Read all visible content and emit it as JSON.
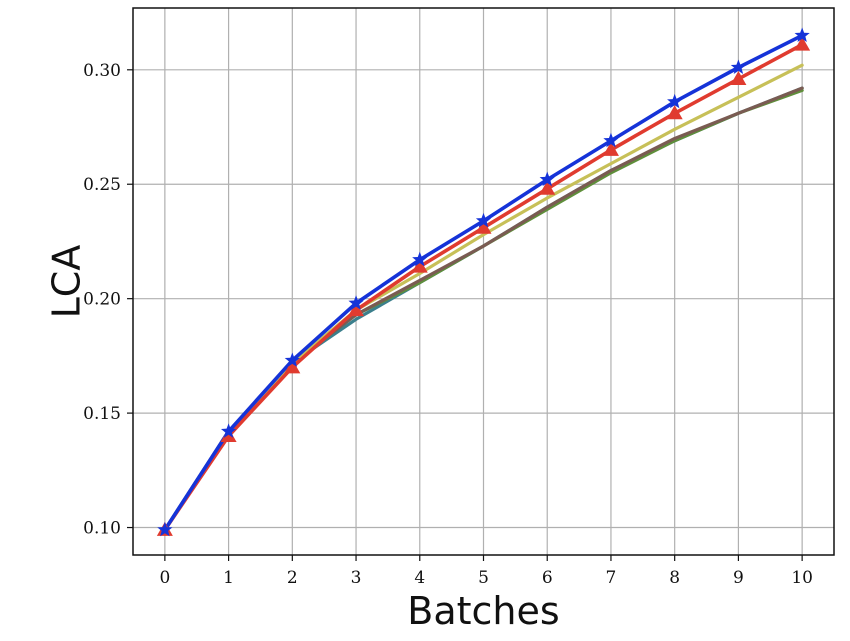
{
  "chart_data": {
    "type": "line",
    "title": "",
    "xlabel": "Batches",
    "ylabel": "LCA",
    "x": [
      0,
      1,
      2,
      3,
      4,
      5,
      6,
      7,
      8,
      9,
      10
    ],
    "xlim": [
      -0.5,
      10.5
    ],
    "ylim": [
      0.088,
      0.327
    ],
    "xticks": [
      "0",
      "1",
      "2",
      "3",
      "4",
      "5",
      "6",
      "7",
      "8",
      "9",
      "10"
    ],
    "yticks": [
      "0.10",
      "0.15",
      "0.20",
      "0.25",
      "0.30"
    ],
    "grid": true,
    "legend": "none",
    "series": [
      {
        "color": "#3b7f8c",
        "marker": "none",
        "values": [
          0.099,
          0.142,
          0.172,
          0.191,
          0.207,
          0.223,
          0.24,
          0.256,
          0.269,
          0.281,
          0.292
        ]
      },
      {
        "color": "#5f8f3b",
        "marker": "none",
        "values": [
          0.099,
          0.142,
          0.172,
          0.193,
          0.207,
          0.223,
          0.239,
          0.255,
          0.269,
          0.281,
          0.291
        ]
      },
      {
        "color": "#7a5b52",
        "marker": "none",
        "values": [
          0.099,
          0.142,
          0.172,
          0.193,
          0.208,
          0.223,
          0.24,
          0.256,
          0.27,
          0.281,
          0.292
        ]
      },
      {
        "color": "#c7c058",
        "marker": "none",
        "values": [
          0.099,
          0.142,
          0.172,
          0.195,
          0.211,
          0.228,
          0.244,
          0.259,
          0.274,
          0.288,
          0.302
        ]
      },
      {
        "color": "#e03b2f",
        "marker": "triangle",
        "values": [
          0.099,
          0.14,
          0.17,
          0.195,
          0.214,
          0.231,
          0.248,
          0.265,
          0.281,
          0.296,
          0.311
        ]
      },
      {
        "color": "#1533d8",
        "marker": "star",
        "values": [
          0.099,
          0.142,
          0.173,
          0.198,
          0.217,
          0.234,
          0.252,
          0.269,
          0.286,
          0.301,
          0.315
        ]
      }
    ]
  }
}
